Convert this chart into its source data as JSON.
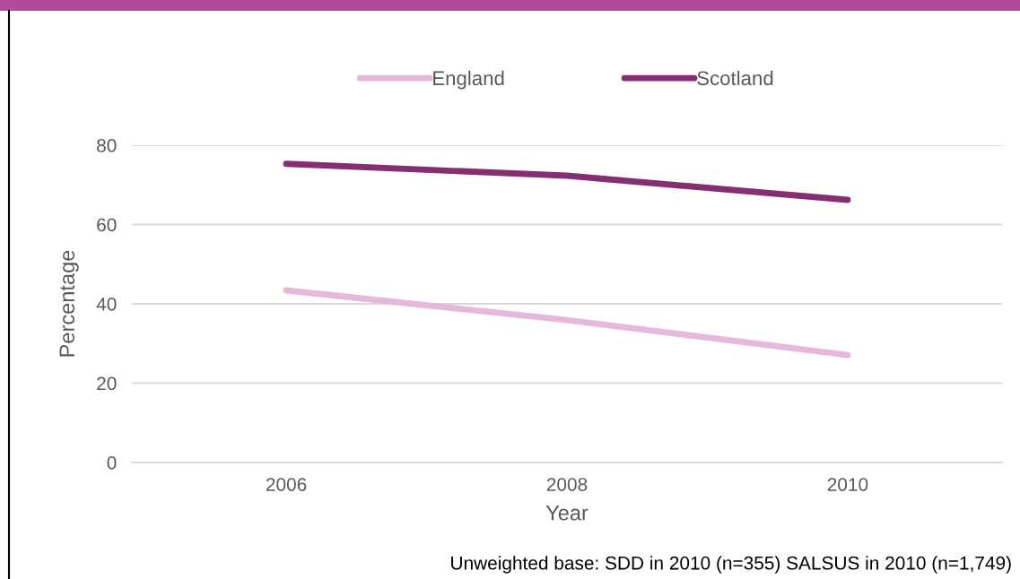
{
  "chart_data": {
    "type": "line",
    "xlabel": "Year",
    "ylabel": "Percentage",
    "categories": [
      "2006",
      "2008",
      "2010"
    ],
    "series": [
      {
        "name": "England",
        "color": "#e6b8dc",
        "values": [
          43.4,
          35.9,
          27.1
        ]
      },
      {
        "name": "Scotland",
        "color": "#862e72",
        "values": [
          75.3,
          72.3,
          66.2
        ]
      }
    ],
    "ylim": [
      0,
      80
    ],
    "yticks": [
      0,
      20,
      40,
      60,
      80
    ],
    "grid": "y",
    "legend": "top",
    "marker": "none",
    "line_style": "solid",
    "annotations": [
      "Unweighted base: SDD in 2010 (n=355) SALSUS in 2010 (n=1,749)"
    ]
  }
}
